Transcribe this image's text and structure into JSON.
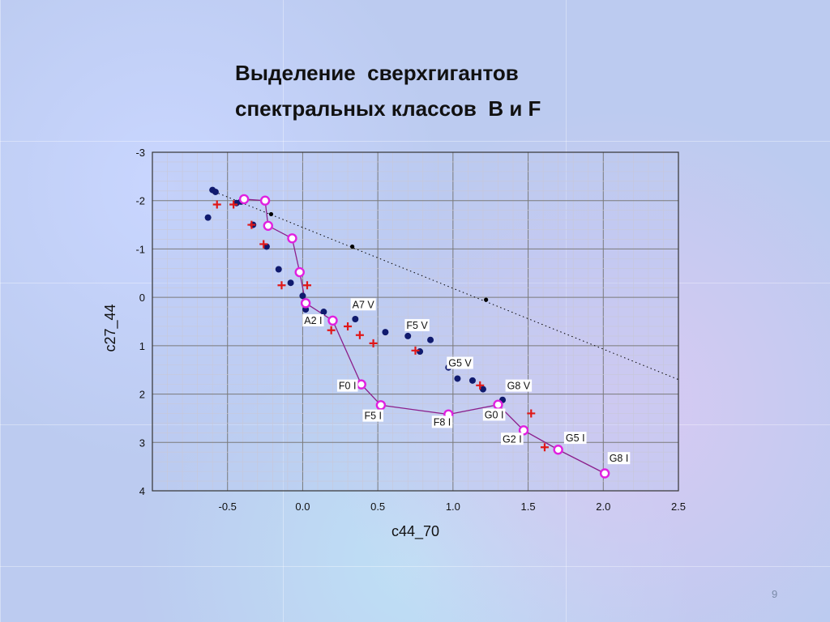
{
  "slide": {
    "title_line1": "Выделение  сверхгигантов",
    "title_line2": "спектральных классов  B и F",
    "page_number": "9"
  },
  "colors": {
    "supergiant_line": "#8b1f8b",
    "supergiant_marker": "#e020e0",
    "dwarf_points": "#101a6e",
    "cross_points": "#e01818",
    "reddening_line": "#000000",
    "grid": "#808080"
  },
  "chart_data": {
    "type": "scatter",
    "title": "",
    "xlabel": "c44_70",
    "ylabel": "c27_44",
    "xlim": [
      -1.0,
      2.5
    ],
    "ylim": [
      4,
      -3
    ],
    "y_inverted": true,
    "grid": true,
    "x_ticks": [
      -0.5,
      0.0,
      0.5,
      1.0,
      1.5,
      2.0,
      2.5
    ],
    "x_tick_labels": [
      "-0.5",
      "0.0",
      "0.5",
      "1.0",
      "1.5",
      "2.0",
      "2.5"
    ],
    "y_ticks": [
      -3,
      -2,
      -1,
      0,
      1,
      2,
      3,
      4
    ],
    "y_tick_labels": [
      "-3",
      "-2",
      "-1",
      "0",
      "1",
      "2",
      "3",
      "4"
    ],
    "series": [
      {
        "kind": "supergiants",
        "points": [
          [
            -0.39,
            -2.03
          ],
          [
            -0.25,
            -2.0
          ],
          [
            -0.23,
            -1.48
          ],
          [
            -0.07,
            -1.22
          ],
          [
            -0.02,
            -0.52
          ],
          [
            0.02,
            0.12
          ],
          [
            0.2,
            0.48
          ],
          [
            0.39,
            1.8
          ],
          [
            0.52,
            2.23
          ],
          [
            0.97,
            2.42
          ],
          [
            1.3,
            2.22
          ],
          [
            1.47,
            2.75
          ],
          [
            1.7,
            3.15
          ],
          [
            2.01,
            3.64
          ]
        ]
      },
      {
        "kind": "dwarfs",
        "points": [
          [
            -0.63,
            -1.65
          ],
          [
            -0.6,
            -2.22
          ],
          [
            -0.58,
            -2.18
          ],
          [
            -0.44,
            -1.95
          ],
          [
            -0.41,
            -1.98
          ],
          [
            -0.33,
            -1.5
          ],
          [
            -0.24,
            -1.05
          ],
          [
            -0.16,
            -0.58
          ],
          [
            -0.08,
            -0.3
          ],
          [
            0.0,
            -0.03
          ],
          [
            0.02,
            0.25
          ],
          [
            0.14,
            0.3
          ],
          [
            0.2,
            0.45
          ],
          [
            0.35,
            0.45
          ],
          [
            0.55,
            0.72
          ],
          [
            0.7,
            0.8
          ],
          [
            0.78,
            1.12
          ],
          [
            0.85,
            0.88
          ],
          [
            0.97,
            1.45
          ],
          [
            1.03,
            1.68
          ],
          [
            1.13,
            1.72
          ],
          [
            1.2,
            1.9
          ],
          [
            1.33,
            2.12
          ]
        ]
      },
      {
        "kind": "crosses",
        "points": [
          [
            -0.57,
            -1.92
          ],
          [
            -0.46,
            -1.92
          ],
          [
            -0.34,
            -1.5
          ],
          [
            -0.26,
            -1.1
          ],
          [
            -0.14,
            -0.25
          ],
          [
            0.03,
            -0.25
          ],
          [
            0.19,
            0.68
          ],
          [
            0.3,
            0.6
          ],
          [
            0.38,
            0.78
          ],
          [
            0.47,
            0.95
          ],
          [
            0.75,
            1.1
          ],
          [
            1.18,
            1.82
          ],
          [
            1.52,
            2.4
          ],
          [
            1.61,
            3.1
          ]
        ]
      },
      {
        "kind": "reddening",
        "line_from": [
          -0.56,
          -2.15
        ],
        "line_to": [
          2.5,
          1.7
        ],
        "points": [
          [
            -0.38,
            -1.98
          ],
          [
            -0.21,
            -1.72
          ],
          [
            0.33,
            -1.05
          ],
          [
            1.22,
            0.05
          ]
        ]
      }
    ],
    "annotations": [
      {
        "text": "A7 V",
        "x": 0.33,
        "y": 0.22
      },
      {
        "text": "A2 I",
        "x": 0.01,
        "y": 0.55
      },
      {
        "text": "F5 V",
        "x": 0.69,
        "y": 0.65
      },
      {
        "text": "G5 V",
        "x": 0.97,
        "y": 1.43
      },
      {
        "text": "F0 I",
        "x": 0.24,
        "y": 1.9
      },
      {
        "text": "G8 V",
        "x": 1.36,
        "y": 1.9
      },
      {
        "text": "F5 I",
        "x": 0.41,
        "y": 2.52
      },
      {
        "text": "G0 I",
        "x": 1.21,
        "y": 2.5
      },
      {
        "text": "F8 I",
        "x": 0.87,
        "y": 2.65
      },
      {
        "text": "G2 I",
        "x": 1.33,
        "y": 3.0
      },
      {
        "text": "G5 I",
        "x": 1.75,
        "y": 2.98
      },
      {
        "text": "G8 I",
        "x": 2.04,
        "y": 3.4
      }
    ]
  }
}
